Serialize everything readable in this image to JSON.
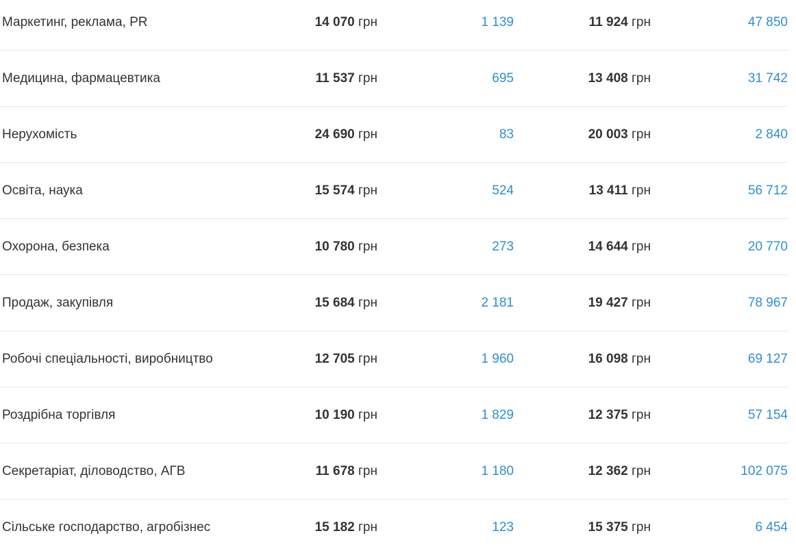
{
  "currency": "грн",
  "colors": {
    "text": "#333333",
    "link": "#2f8fcc",
    "divider": "#e6e6e6"
  },
  "rows": [
    {
      "category": "Маркетинг, реклама, PR",
      "salary_1": "14 070",
      "count_1": "1 139",
      "salary_2": "11 924",
      "count_2": "47 850"
    },
    {
      "category": "Медицина, фармацевтика",
      "salary_1": "11 537",
      "count_1": "695",
      "salary_2": "13 408",
      "count_2": "31 742"
    },
    {
      "category": "Нерухомість",
      "salary_1": "24 690",
      "count_1": "83",
      "salary_2": "20 003",
      "count_2": "2 840"
    },
    {
      "category": "Освіта, наука",
      "salary_1": "15 574",
      "count_1": "524",
      "salary_2": "13 411",
      "count_2": "56 712"
    },
    {
      "category": "Охорона, безпека",
      "salary_1": "10 780",
      "count_1": "273",
      "salary_2": "14 644",
      "count_2": "20 770"
    },
    {
      "category": "Продаж, закупівля",
      "salary_1": "15 684",
      "count_1": "2 181",
      "salary_2": "19 427",
      "count_2": "78 967"
    },
    {
      "category": "Робочі спеціальності, виробництво",
      "salary_1": "12 705",
      "count_1": "1 960",
      "salary_2": "16 098",
      "count_2": "69 127"
    },
    {
      "category": "Роздрібна торгівля",
      "salary_1": "10 190",
      "count_1": "1 829",
      "salary_2": "12 375",
      "count_2": "57 154"
    },
    {
      "category": "Секретаріат, діловодство, АГВ",
      "salary_1": "11 678",
      "count_1": "1 180",
      "salary_2": "12 362",
      "count_2": "102 075"
    },
    {
      "category": "Сільське господарство, агробізнес",
      "salary_1": "15 182",
      "count_1": "123",
      "salary_2": "15 375",
      "count_2": "6 454"
    }
  ]
}
